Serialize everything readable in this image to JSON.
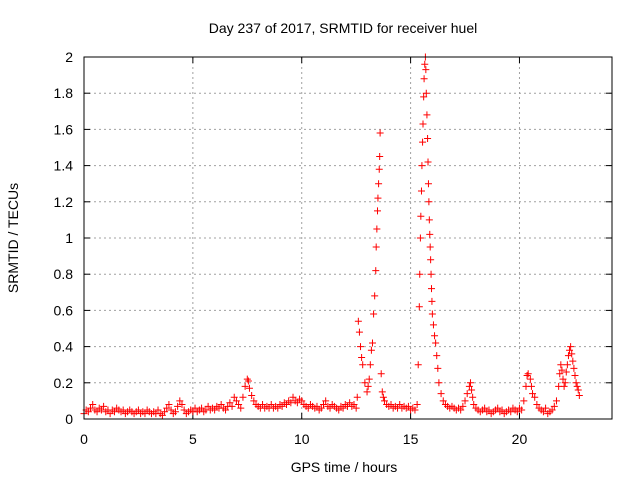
{
  "chart_data": {
    "type": "scatter",
    "title": "Day 237 of 2017, SRMTID for receiver huel",
    "xlabel": "GPS time / hours",
    "ylabel": "SRMTID / TECUs",
    "xlim": [
      0,
      24.25
    ],
    "ylim": [
      0,
      2
    ],
    "xticks": [
      0,
      5,
      10,
      15,
      20
    ],
    "yticks": [
      0,
      0.2,
      0.4,
      0.6,
      0.8,
      1,
      1.2,
      1.4,
      1.6,
      1.8,
      2
    ],
    "grid": true,
    "marker": "plus",
    "colors": {
      "series": "#ff0000",
      "grid": "#a0a0a0",
      "axis": "#000000"
    },
    "series": [
      {
        "points": [
          [
            0.0,
            0.03
          ],
          [
            0.1,
            0.05
          ],
          [
            0.2,
            0.04
          ],
          [
            0.3,
            0.06
          ],
          [
            0.4,
            0.08
          ],
          [
            0.5,
            0.05
          ],
          [
            0.6,
            0.04
          ],
          [
            0.7,
            0.06
          ],
          [
            0.8,
            0.05
          ],
          [
            0.9,
            0.07
          ],
          [
            1.0,
            0.04
          ],
          [
            1.1,
            0.05
          ],
          [
            1.2,
            0.03
          ],
          [
            1.3,
            0.05
          ],
          [
            1.4,
            0.04
          ],
          [
            1.5,
            0.06
          ],
          [
            1.6,
            0.05
          ],
          [
            1.7,
            0.04
          ],
          [
            1.8,
            0.05
          ],
          [
            1.9,
            0.03
          ],
          [
            2.0,
            0.04
          ],
          [
            2.1,
            0.05
          ],
          [
            2.2,
            0.04
          ],
          [
            2.3,
            0.03
          ],
          [
            2.4,
            0.04
          ],
          [
            2.5,
            0.05
          ],
          [
            2.6,
            0.03
          ],
          [
            2.7,
            0.04
          ],
          [
            2.8,
            0.03
          ],
          [
            2.9,
            0.05
          ],
          [
            3.0,
            0.04
          ],
          [
            3.1,
            0.03
          ],
          [
            3.2,
            0.04
          ],
          [
            3.3,
            0.03
          ],
          [
            3.4,
            0.05
          ],
          [
            3.5,
            0.03
          ],
          [
            3.6,
            0.02
          ],
          [
            3.7,
            0.04
          ],
          [
            3.8,
            0.06
          ],
          [
            3.9,
            0.08
          ],
          [
            4.0,
            0.05
          ],
          [
            4.1,
            0.03
          ],
          [
            4.2,
            0.04
          ],
          [
            4.3,
            0.07
          ],
          [
            4.4,
            0.1
          ],
          [
            4.5,
            0.08
          ],
          [
            4.6,
            0.05
          ],
          [
            4.7,
            0.03
          ],
          [
            4.8,
            0.04
          ],
          [
            4.9,
            0.05
          ],
          [
            5.0,
            0.04
          ],
          [
            5.1,
            0.06
          ],
          [
            5.2,
            0.04
          ],
          [
            5.3,
            0.05
          ],
          [
            5.4,
            0.06
          ],
          [
            5.5,
            0.04
          ],
          [
            5.6,
            0.05
          ],
          [
            5.7,
            0.07
          ],
          [
            5.8,
            0.05
          ],
          [
            5.9,
            0.06
          ],
          [
            6.0,
            0.05
          ],
          [
            6.1,
            0.07
          ],
          [
            6.2,
            0.06
          ],
          [
            6.3,
            0.08
          ],
          [
            6.4,
            0.06
          ],
          [
            6.5,
            0.05
          ],
          [
            6.6,
            0.07
          ],
          [
            6.7,
            0.09
          ],
          [
            6.8,
            0.07
          ],
          [
            6.9,
            0.12
          ],
          [
            7.0,
            0.1
          ],
          [
            7.1,
            0.08
          ],
          [
            7.2,
            0.06
          ],
          [
            7.3,
            0.12
          ],
          [
            7.4,
            0.18
          ],
          [
            7.5,
            0.22
          ],
          [
            7.55,
            0.21
          ],
          [
            7.6,
            0.17
          ],
          [
            7.7,
            0.13
          ],
          [
            7.8,
            0.1
          ],
          [
            7.9,
            0.08
          ],
          [
            8.0,
            0.07
          ],
          [
            8.1,
            0.06
          ],
          [
            8.2,
            0.08
          ],
          [
            8.3,
            0.06
          ],
          [
            8.4,
            0.07
          ],
          [
            8.5,
            0.06
          ],
          [
            8.6,
            0.08
          ],
          [
            8.7,
            0.06
          ],
          [
            8.8,
            0.07
          ],
          [
            8.9,
            0.06
          ],
          [
            9.0,
            0.08
          ],
          [
            9.1,
            0.07
          ],
          [
            9.2,
            0.09
          ],
          [
            9.3,
            0.08
          ],
          [
            9.4,
            0.1
          ],
          [
            9.5,
            0.09
          ],
          [
            9.6,
            0.12
          ],
          [
            9.7,
            0.1
          ],
          [
            9.8,
            0.09
          ],
          [
            9.9,
            0.11
          ],
          [
            10.0,
            0.1
          ],
          [
            10.1,
            0.08
          ],
          [
            10.2,
            0.07
          ],
          [
            10.3,
            0.06
          ],
          [
            10.4,
            0.08
          ],
          [
            10.5,
            0.07
          ],
          [
            10.6,
            0.06
          ],
          [
            10.7,
            0.07
          ],
          [
            10.8,
            0.05
          ],
          [
            10.9,
            0.06
          ],
          [
            11.0,
            0.08
          ],
          [
            11.1,
            0.1
          ],
          [
            11.2,
            0.07
          ],
          [
            11.3,
            0.06
          ],
          [
            11.4,
            0.08
          ],
          [
            11.5,
            0.07
          ],
          [
            11.6,
            0.06
          ],
          [
            11.7,
            0.05
          ],
          [
            11.8,
            0.07
          ],
          [
            11.9,
            0.06
          ],
          [
            12.0,
            0.08
          ],
          [
            12.1,
            0.07
          ],
          [
            12.2,
            0.09
          ],
          [
            12.3,
            0.07
          ],
          [
            12.4,
            0.08
          ],
          [
            12.5,
            0.06
          ],
          [
            12.55,
            0.12
          ],
          [
            12.6,
            0.54
          ],
          [
            12.65,
            0.48
          ],
          [
            12.7,
            0.4
          ],
          [
            12.75,
            0.34
          ],
          [
            12.8,
            0.3
          ],
          [
            12.9,
            0.2
          ],
          [
            13.0,
            0.15
          ],
          [
            13.05,
            0.18
          ],
          [
            13.1,
            0.22
          ],
          [
            13.15,
            0.3
          ],
          [
            13.2,
            0.38
          ],
          [
            13.25,
            0.42
          ],
          [
            13.3,
            0.58
          ],
          [
            13.35,
            0.68
          ],
          [
            13.4,
            0.82
          ],
          [
            13.42,
            0.95
          ],
          [
            13.45,
            1.05
          ],
          [
            13.48,
            1.15
          ],
          [
            13.5,
            1.22
          ],
          [
            13.53,
            1.3
          ],
          [
            13.56,
            1.38
          ],
          [
            13.58,
            1.45
          ],
          [
            13.6,
            1.58
          ],
          [
            13.65,
            0.25
          ],
          [
            13.7,
            0.15
          ],
          [
            13.75,
            0.12
          ],
          [
            13.8,
            0.1
          ],
          [
            13.9,
            0.08
          ],
          [
            14.0,
            0.07
          ],
          [
            14.1,
            0.08
          ],
          [
            14.2,
            0.06
          ],
          [
            14.3,
            0.07
          ],
          [
            14.4,
            0.06
          ],
          [
            14.5,
            0.08
          ],
          [
            14.6,
            0.06
          ],
          [
            14.7,
            0.07
          ],
          [
            14.8,
            0.06
          ],
          [
            14.9,
            0.07
          ],
          [
            15.0,
            0.05
          ],
          [
            15.1,
            0.06
          ],
          [
            15.2,
            0.05
          ],
          [
            15.3,
            0.08
          ],
          [
            15.35,
            0.3
          ],
          [
            15.4,
            0.62
          ],
          [
            15.42,
            0.8
          ],
          [
            15.45,
            1.0
          ],
          [
            15.47,
            1.12
          ],
          [
            15.5,
            1.26
          ],
          [
            15.52,
            1.4
          ],
          [
            15.55,
            1.53
          ],
          [
            15.57,
            1.63
          ],
          [
            15.6,
            1.78
          ],
          [
            15.62,
            1.88
          ],
          [
            15.65,
            1.96
          ],
          [
            15.68,
            2.0
          ],
          [
            15.7,
            1.93
          ],
          [
            15.72,
            1.8
          ],
          [
            15.75,
            1.68
          ],
          [
            15.78,
            1.55
          ],
          [
            15.8,
            1.42
          ],
          [
            15.82,
            1.3
          ],
          [
            15.84,
            1.2
          ],
          [
            15.86,
            1.1
          ],
          [
            15.88,
            1.02
          ],
          [
            15.9,
            0.95
          ],
          [
            15.92,
            0.88
          ],
          [
            15.94,
            0.8
          ],
          [
            15.96,
            0.72
          ],
          [
            15.98,
            0.65
          ],
          [
            16.0,
            0.58
          ],
          [
            16.05,
            0.52
          ],
          [
            16.1,
            0.46
          ],
          [
            16.15,
            0.42
          ],
          [
            16.2,
            0.35
          ],
          [
            16.25,
            0.28
          ],
          [
            16.3,
            0.2
          ],
          [
            16.4,
            0.14
          ],
          [
            16.5,
            0.1
          ],
          [
            16.6,
            0.08
          ],
          [
            16.7,
            0.07
          ],
          [
            16.8,
            0.06
          ],
          [
            16.9,
            0.07
          ],
          [
            17.0,
            0.06
          ],
          [
            17.1,
            0.05
          ],
          [
            17.2,
            0.06
          ],
          [
            17.3,
            0.05
          ],
          [
            17.4,
            0.07
          ],
          [
            17.5,
            0.1
          ],
          [
            17.6,
            0.14
          ],
          [
            17.7,
            0.18
          ],
          [
            17.75,
            0.2
          ],
          [
            17.8,
            0.16
          ],
          [
            17.85,
            0.12
          ],
          [
            17.9,
            0.08
          ],
          [
            18.0,
            0.06
          ],
          [
            18.1,
            0.05
          ],
          [
            18.2,
            0.04
          ],
          [
            18.3,
            0.05
          ],
          [
            18.4,
            0.06
          ],
          [
            18.5,
            0.04
          ],
          [
            18.6,
            0.05
          ],
          [
            18.7,
            0.03
          ],
          [
            18.8,
            0.04
          ],
          [
            18.9,
            0.05
          ],
          [
            19.0,
            0.06
          ],
          [
            19.1,
            0.04
          ],
          [
            19.2,
            0.05
          ],
          [
            19.3,
            0.03
          ],
          [
            19.4,
            0.04
          ],
          [
            19.5,
            0.05
          ],
          [
            19.6,
            0.04
          ],
          [
            19.7,
            0.06
          ],
          [
            19.8,
            0.05
          ],
          [
            19.9,
            0.04
          ],
          [
            20.0,
            0.06
          ],
          [
            20.1,
            0.05
          ],
          [
            20.2,
            0.1
          ],
          [
            20.3,
            0.18
          ],
          [
            20.35,
            0.24
          ],
          [
            20.4,
            0.25
          ],
          [
            20.5,
            0.22
          ],
          [
            20.55,
            0.18
          ],
          [
            20.6,
            0.14
          ],
          [
            20.7,
            0.12
          ],
          [
            20.8,
            0.08
          ],
          [
            20.9,
            0.06
          ],
          [
            21.0,
            0.05
          ],
          [
            21.1,
            0.04
          ],
          [
            21.2,
            0.06
          ],
          [
            21.3,
            0.03
          ],
          [
            21.4,
            0.04
          ],
          [
            21.5,
            0.05
          ],
          [
            21.6,
            0.07
          ],
          [
            21.7,
            0.1
          ],
          [
            21.8,
            0.18
          ],
          [
            21.85,
            0.25
          ],
          [
            21.9,
            0.3
          ],
          [
            21.95,
            0.27
          ],
          [
            22.0,
            0.22
          ],
          [
            22.05,
            0.18
          ],
          [
            22.1,
            0.2
          ],
          [
            22.15,
            0.26
          ],
          [
            22.2,
            0.3
          ],
          [
            22.25,
            0.35
          ],
          [
            22.3,
            0.38
          ],
          [
            22.35,
            0.4
          ],
          [
            22.4,
            0.36
          ],
          [
            22.45,
            0.32
          ],
          [
            22.5,
            0.28
          ],
          [
            22.55,
            0.24
          ],
          [
            22.6,
            0.2
          ],
          [
            22.65,
            0.18
          ],
          [
            22.7,
            0.16
          ],
          [
            22.75,
            0.13
          ]
        ]
      }
    ]
  }
}
